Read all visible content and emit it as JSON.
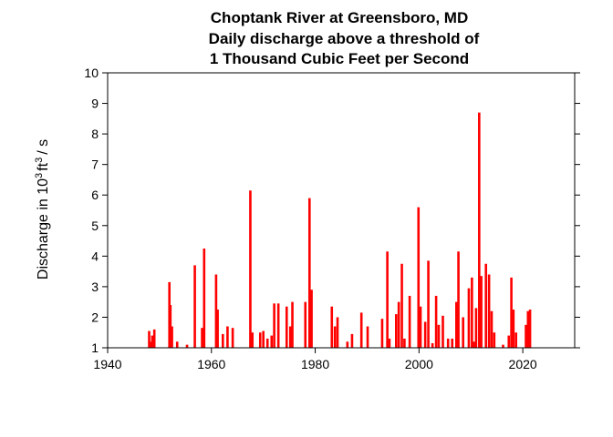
{
  "chart_data": {
    "type": "bar",
    "title_lines": [
      "Choptank River at Greensboro, MD",
      "Daily discharge above a threshold of",
      "1 Thousand Cubic Feet per Second"
    ],
    "xlabel": "",
    "ylabel": "Discharge in 10",
    "ylabel_superscript": "3",
    "ylabel_unit": "ft",
    "ylabel_unit_superscript": "3",
    "ylabel_suffix": "/ s",
    "xlim": [
      1940,
      2030
    ],
    "ylim": [
      1,
      10
    ],
    "x_ticks": [
      1940,
      1960,
      1980,
      2000,
      2020
    ],
    "y_ticks": [
      1,
      2,
      3,
      4,
      5,
      6,
      7,
      8,
      9,
      10
    ],
    "grid": false,
    "color": "#ff0000",
    "series": [
      {
        "x": [
          1948.0,
          1948.3,
          1948.6,
          1949.0,
          1951.9,
          1952.1,
          1952.4,
          1953.4,
          1955.3,
          1956.8,
          1958.2,
          1958.6,
          1960.9,
          1961.2,
          1962.2,
          1963.1,
          1964.1,
          1967.5,
          1967.9,
          1969.4,
          1970.0,
          1970.8,
          1971.6,
          1972.1,
          1972.9,
          1974.5,
          1975.2,
          1975.6,
          1978.1,
          1978.9,
          1979.3,
          1983.2,
          1983.8,
          1984.3,
          1986.2,
          1987.1,
          1988.9,
          1990.1,
          1992.9,
          1993.9,
          1994.3,
          1995.6,
          1996.1,
          1996.7,
          1997.2,
          1998.2,
          1999.9,
          2000.3,
          2001.2,
          2001.8,
          2002.6,
          2003.3,
          2003.8,
          2004.6,
          2005.6,
          2006.4,
          2007.2,
          2007.6,
          2008.5,
          2009.6,
          2010.2,
          2010.6,
          2011.0,
          2011.6,
          2012.0,
          2012.9,
          2013.5,
          2014.0,
          2014.5,
          2016.2,
          2017.3,
          2017.8,
          2018.2,
          2018.7,
          2020.6,
          2021.0,
          2021.4
        ],
        "values": [
          1.55,
          1.2,
          1.4,
          1.6,
          3.15,
          2.4,
          1.7,
          1.2,
          1.1,
          3.7,
          1.65,
          4.25,
          3.4,
          2.25,
          1.45,
          1.7,
          1.65,
          6.15,
          1.5,
          1.5,
          1.55,
          1.3,
          1.4,
          2.45,
          2.45,
          2.35,
          1.7,
          2.5,
          2.5,
          5.9,
          2.9,
          2.35,
          1.7,
          2.0,
          1.2,
          1.45,
          2.15,
          1.7,
          1.95,
          4.15,
          1.3,
          2.1,
          2.5,
          3.75,
          1.3,
          2.7,
          5.6,
          2.35,
          1.85,
          3.85,
          1.15,
          2.7,
          1.75,
          2.05,
          1.3,
          1.3,
          2.5,
          4.15,
          2.0,
          2.95,
          3.3,
          1.2,
          2.3,
          8.7,
          3.35,
          3.75,
          3.4,
          2.2,
          1.5,
          1.1,
          1.4,
          3.3,
          2.25,
          1.5,
          1.75,
          2.2,
          2.25
        ]
      }
    ]
  }
}
